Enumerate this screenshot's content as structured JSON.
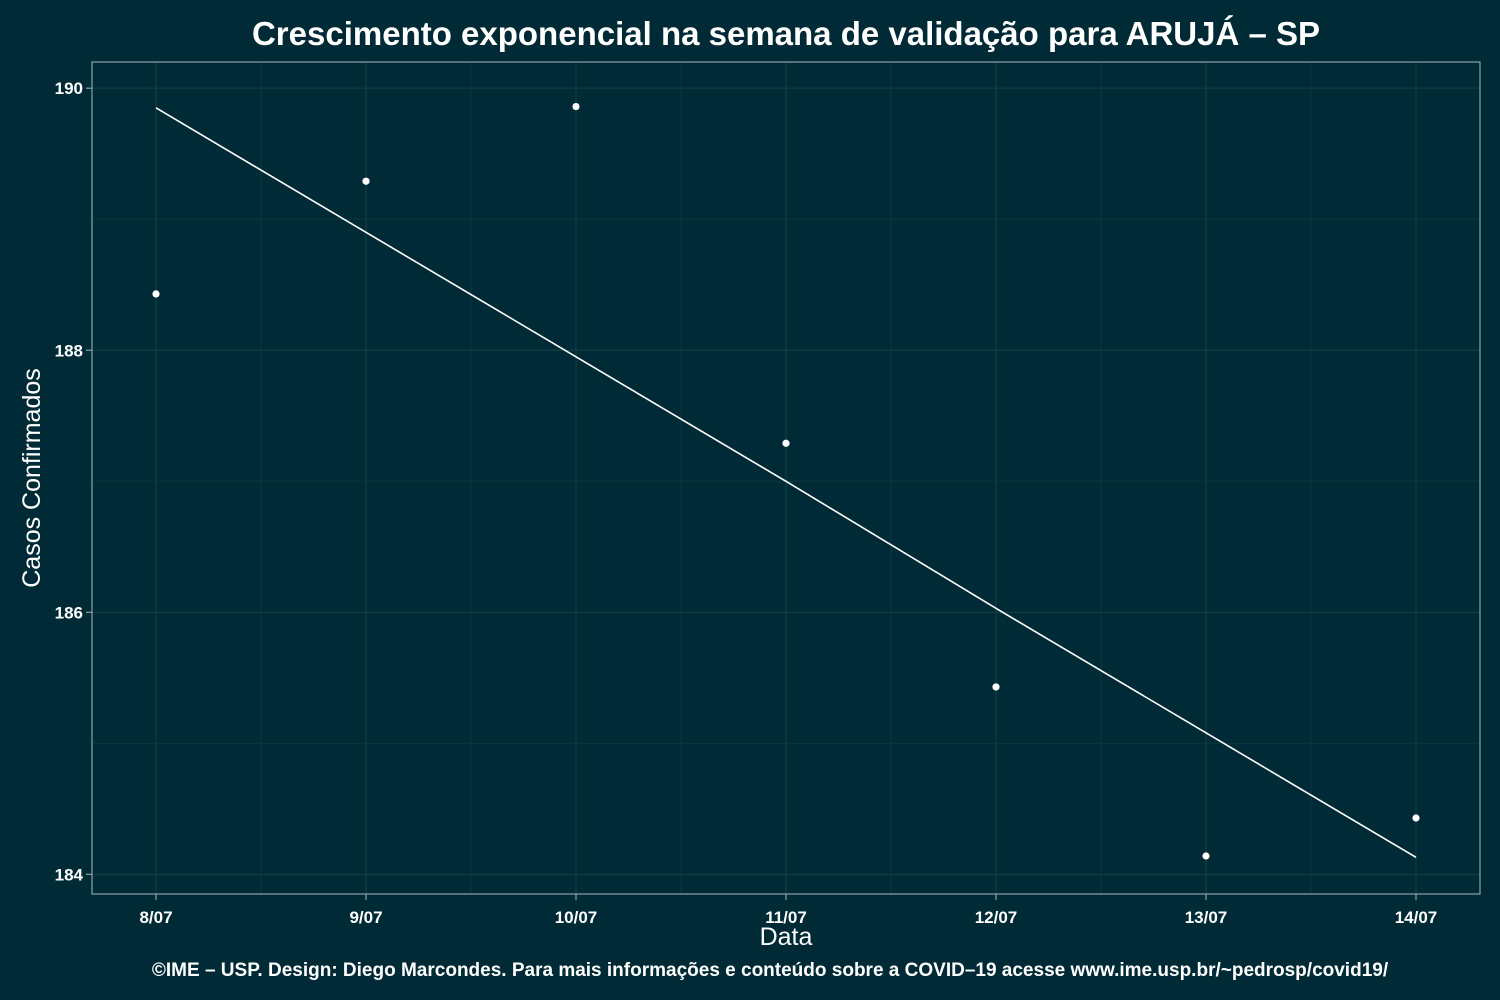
{
  "chart_data": {
    "type": "scatter",
    "title": "Crescimento exponencial na semana de validação para ARUJÁ – SP",
    "xlabel": "Data",
    "ylabel": "Casos Confirmados",
    "caption": "©IME – USP. Design: Diego Marcondes. Para mais informações e conteúdo sobre a COVID–19 acesse www.ime.usp.br/~pedrosp/covid19/",
    "categories": [
      "8/07",
      "9/07",
      "10/07",
      "11/07",
      "12/07",
      "13/07",
      "14/07"
    ],
    "series": [
      {
        "type": "scatter",
        "values": [
          188.43,
          189.29,
          189.86,
          187.29,
          185.43,
          184.14,
          184.43
        ]
      },
      {
        "type": "line",
        "values": [
          189.85,
          188.9,
          187.95,
          187.0,
          186.03,
          185.08,
          184.13
        ]
      }
    ],
    "yticks": [
      184,
      186,
      188,
      190
    ],
    "ylim": [
      183.85,
      190.2
    ],
    "grid": true,
    "legend": "none",
    "colors": {
      "background": "#002b36",
      "marks": "#ffffff"
    }
  }
}
